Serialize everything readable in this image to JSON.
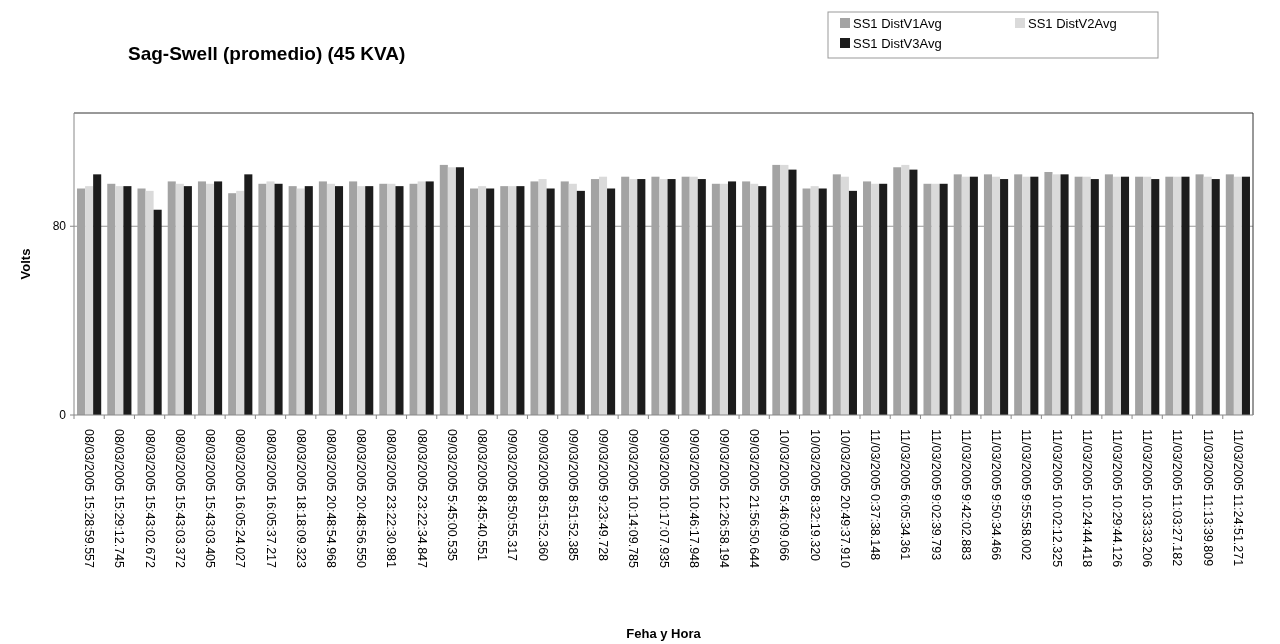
{
  "chart_data": {
    "type": "bar",
    "title": "Sag-Swell (promedio)  (45 KVA)",
    "xlabel": "Feha y Hora",
    "ylabel": "Volts",
    "categories": [
      "08/03/2005 15:28:59.557",
      "08/03/2005 15:29:12.745",
      "08/03/2005 15:43:02.672",
      "08/03/2005 15:43:03.372",
      "08/03/2005 15:43:03.405",
      "08/03/2005 16:05:24.027",
      "08/03/2005 16:05:37.217",
      "08/03/2005 18:18:09.323",
      "08/03/2005 20:48:54.968",
      "08/03/2005 20:48:56.550",
      "08/03/2005 23:22:30.981",
      "08/03/2005 23:22:34.847",
      "09/03/2005 5:45:00.535",
      "08/03/2005 8:45:40.551",
      "09/03/2005 8:50:55.317",
      "09/03/2005 8:51:52.360",
      "09/03/2005 8:51:52.385",
      "09/03/2005 9:23:49.728",
      "09/03/2005 10:14:09.785",
      "09/03/2005 10:17:07.935",
      "09/03/2005 10:46:17.948",
      "09/03/2005 12:26:58.194",
      "09/03/2005 21:56:50.644",
      "10/03/2005 5:46:09.066",
      "10/03/2005 8:32:19.320",
      "10/03/2005 20:49:37.910",
      "11/03/2005 0:37:38.148",
      "11/03/2005 6:05:34.361",
      "11/03/2005 9:02:39.793",
      "11/03/2005 9:42:02.883",
      "11/03/2005 9:50:34.466",
      "11/03/2005 9:55:58.002",
      "11/03/2005 10:02:12.325",
      "11/03/2005 10:24:44.418",
      "11/03/2005 10:29:44.126",
      "11/03/2005 10:33:33.206",
      "11/03/2005 11:03:27.182",
      "11/03/2005 11:13:39.809",
      "11/03/2005 11:24:51.271"
    ],
    "series": [
      {
        "name": "SS1 DistV1Avg",
        "color": "#a3a3a3",
        "values": [
          96,
          98,
          96,
          99,
          99,
          94,
          98,
          97,
          99,
          99,
          98,
          98,
          106,
          96,
          97,
          99,
          99,
          100,
          101,
          101,
          101,
          98,
          99,
          106,
          96,
          102,
          99,
          105,
          98,
          102,
          102,
          102,
          103,
          101,
          102,
          101,
          101,
          102,
          102
        ]
      },
      {
        "name": "SS1 DistV2Avg",
        "color": "#dadada",
        "values": [
          97,
          97,
          95,
          98,
          98,
          95,
          99,
          96,
          98,
          97,
          98,
          99,
          105,
          97,
          97,
          100,
          98,
          101,
          100,
          100,
          101,
          98,
          98,
          106,
          97,
          101,
          98,
          106,
          98,
          101,
          101,
          101,
          102,
          101,
          101,
          101,
          101,
          101,
          101
        ]
      },
      {
        "name": "SS1 DistV3Avg",
        "color": "#1c1c1c",
        "values": [
          102,
          97,
          87,
          97,
          99,
          102,
          98,
          97,
          97,
          97,
          97,
          99,
          105,
          96,
          97,
          96,
          95,
          96,
          100,
          100,
          100,
          99,
          97,
          104,
          96,
          95,
          98,
          104,
          98,
          101,
          100,
          101,
          102,
          100,
          101,
          100,
          101,
          100,
          101
        ]
      }
    ],
    "ylim": [
      0,
      128
    ],
    "yticks": [
      0,
      80
    ],
    "grid": "y",
    "legend": "top right"
  }
}
